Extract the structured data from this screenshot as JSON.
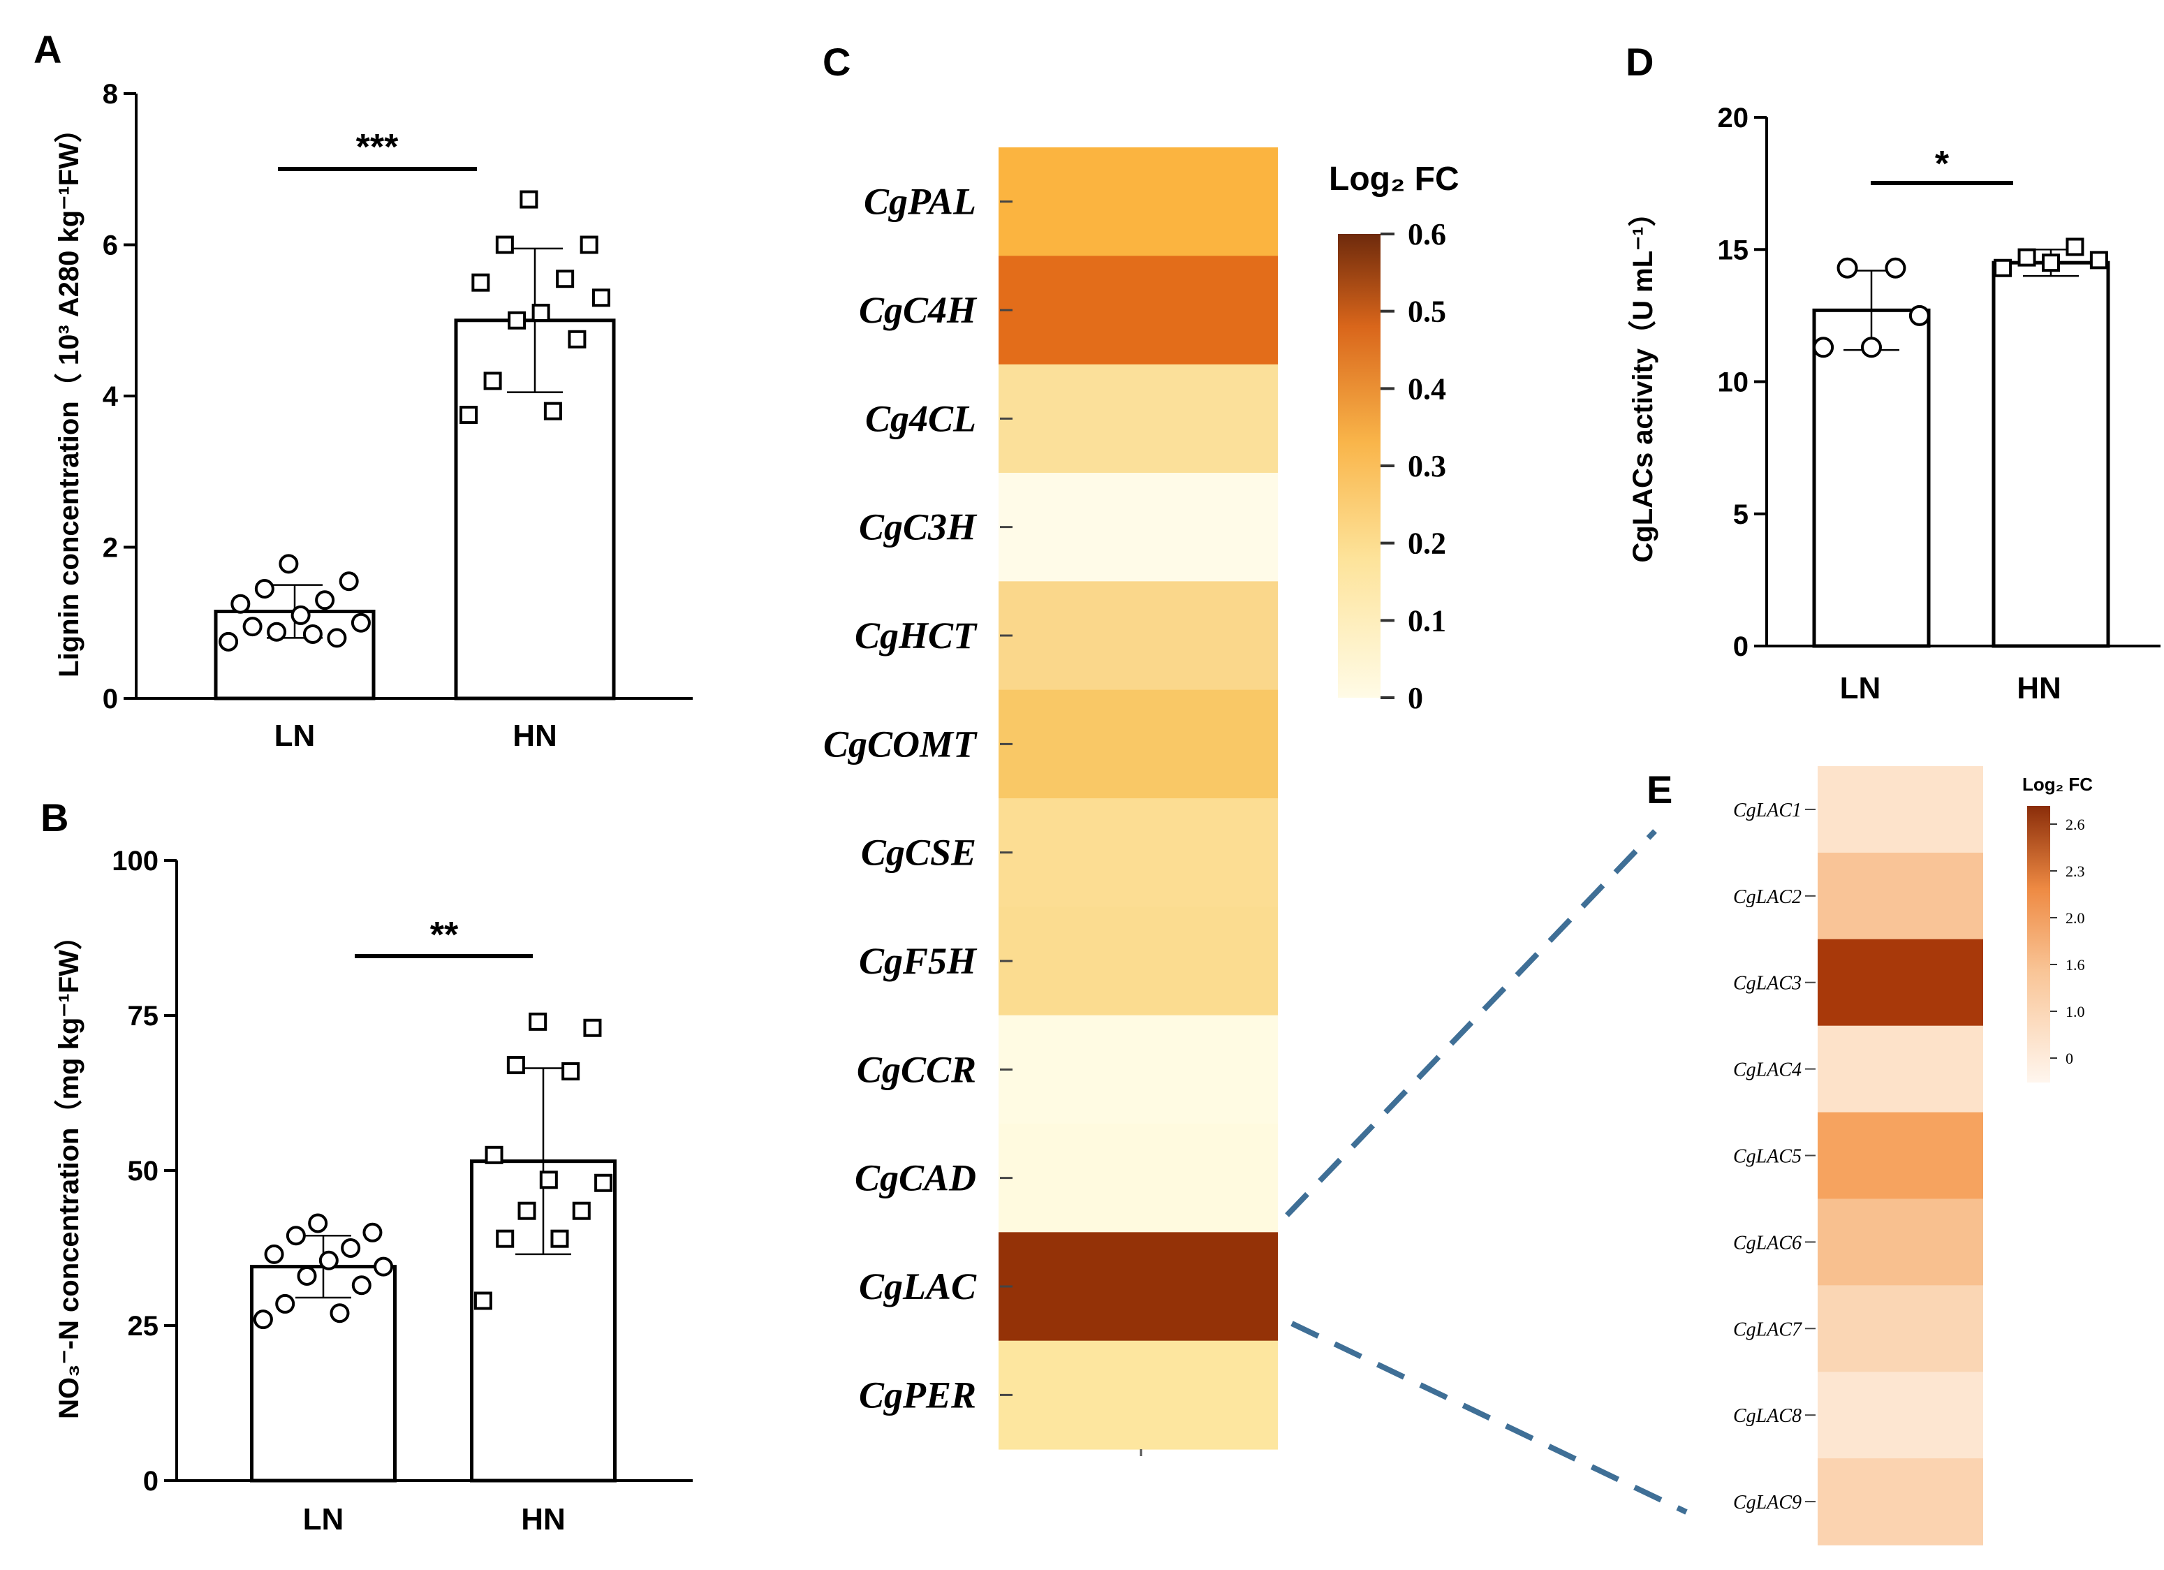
{
  "chart_data": [
    {
      "panel": "A",
      "type": "bar",
      "categories": [
        "LN",
        "HN"
      ],
      "values": [
        1.15,
        5.0
      ],
      "errors": [
        0.35,
        0.95
      ],
      "points": [
        [
          0.75,
          0.85,
          0.95,
          0.8,
          0.88,
          1.0,
          1.1,
          1.25,
          1.3,
          1.45,
          1.55,
          1.78
        ],
        [
          3.75,
          3.8,
          4.2,
          4.75,
          5.0,
          5.3,
          5.1,
          5.5,
          5.55,
          6.0,
          6.0,
          6.6
        ]
      ],
      "point_marker": [
        "circle",
        "square"
      ],
      "ylabel": "Lignin concentration（ 10³ A280 kg⁻¹FW）",
      "ylim": [
        0,
        8
      ],
      "yticks": [
        "0",
        "2",
        "4",
        "6",
        "8"
      ],
      "significance": "***"
    },
    {
      "panel": "B",
      "type": "bar",
      "categories": [
        "LN",
        "HN"
      ],
      "values": [
        34.5,
        51.5
      ],
      "errors": [
        5.0,
        15.0
      ],
      "points": [
        [
          26.0,
          27.0,
          28.5,
          31.5,
          33.0,
          34.5,
          35.5,
          36.5,
          37.5,
          39.5,
          40.0,
          41.5
        ],
        [
          29.0,
          39.0,
          39.0,
          43.5,
          43.5,
          48.0,
          48.5,
          52.5,
          66.0,
          67.0,
          73.0,
          74.0
        ]
      ],
      "point_marker": [
        "circle",
        "square"
      ],
      "ylabel": "NO₃⁻-N concentration（mg kg⁻¹FW）",
      "ylim": [
        0,
        100
      ],
      "yticks": [
        "0",
        "25",
        "50",
        "75",
        "100"
      ],
      "significance": "**"
    },
    {
      "panel": "C",
      "type": "heatmap",
      "rows": [
        "CgPAL",
        "CgC4H",
        "Cg4CL",
        "CgC3H",
        "CgHCT",
        "CgCOMT",
        "CgCSE",
        "CgF5H",
        "CgCCR",
        "CgCAD",
        "CgLAC",
        "CgPER"
      ],
      "values": [
        0.25,
        0.38,
        0.12,
        0.02,
        0.14,
        0.2,
        0.11,
        0.12,
        0.04,
        0.03,
        0.6,
        0.1
      ],
      "colors": [
        "#fbb440",
        "#e36d1a",
        "#fbe09a",
        "#fffbe8",
        "#fad78b",
        "#f9c866",
        "#fcdd93",
        "#fbdc90",
        "#fffbe3",
        "#fffadf",
        "#943207",
        "#fde69f"
      ],
      "colorbar": {
        "title": "Log₂ FC",
        "ticks": [
          "0.6",
          "0.5",
          "0.4",
          "0.3",
          "0.2",
          "0.1",
          "0"
        ],
        "range": [
          0,
          0.6
        ]
      }
    },
    {
      "panel": "D",
      "type": "bar",
      "categories": [
        "LN",
        "HN"
      ],
      "values": [
        12.7,
        14.5
      ],
      "errors": [
        1.5,
        0.5
      ],
      "points": [
        [
          11.3,
          11.3,
          12.5,
          14.3,
          14.3
        ],
        [
          14.3,
          14.5,
          14.6,
          14.7,
          15.1
        ]
      ],
      "point_marker": [
        "circle",
        "square"
      ],
      "ylabel": "CgLACs activity（U mL⁻¹）",
      "ylim": [
        0,
        20
      ],
      "yticks": [
        "0",
        "5",
        "10",
        "15",
        "20"
      ],
      "significance": "*"
    },
    {
      "panel": "E",
      "type": "heatmap",
      "rows": [
        "CgLAC1",
        "CgLAC2",
        "CgLAC3",
        "CgLAC4",
        "CgLAC5",
        "CgLAC6",
        "CgLAC7",
        "CgLAC8",
        "CgLAC9"
      ],
      "values": [
        0.4,
        1.1,
        2.6,
        0.45,
        1.6,
        1.2,
        0.8,
        0.35,
        0.75
      ],
      "colors": [
        "#fde3cb",
        "#f9c497",
        "#a8390a",
        "#fde2c9",
        "#f6a35f",
        "#f8c08f",
        "#fad6b4",
        "#fde6d1",
        "#fbd3b0"
      ],
      "colorbar": {
        "title": "Log₂ FC",
        "ticks": [
          "2.6",
          "2.3",
          "2.0",
          "1.6",
          "1.0",
          "0"
        ],
        "range": [
          0,
          2.6
        ]
      }
    }
  ]
}
